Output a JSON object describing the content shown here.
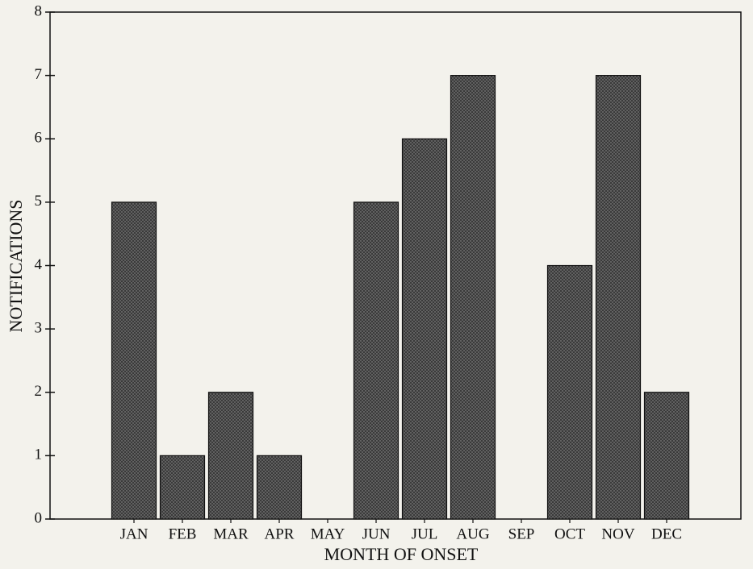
{
  "chart_data": {
    "type": "bar",
    "xlabel": "MONTH OF ONSET",
    "ylabel": "NOTIFICATIONS",
    "categories": [
      "JAN",
      "FEB",
      "MAR",
      "APR",
      "MAY",
      "JUN",
      "JUL",
      "AUG",
      "SEP",
      "OCT",
      "NOV",
      "DEC"
    ],
    "values": [
      5,
      1,
      2,
      1,
      0,
      5,
      6,
      7,
      0,
      4,
      7,
      2
    ],
    "color": "#3a3a3a",
    "ylim": [
      0,
      8
    ],
    "yticks": [
      0,
      1,
      2,
      3,
      4,
      5,
      6,
      7,
      8
    ]
  }
}
